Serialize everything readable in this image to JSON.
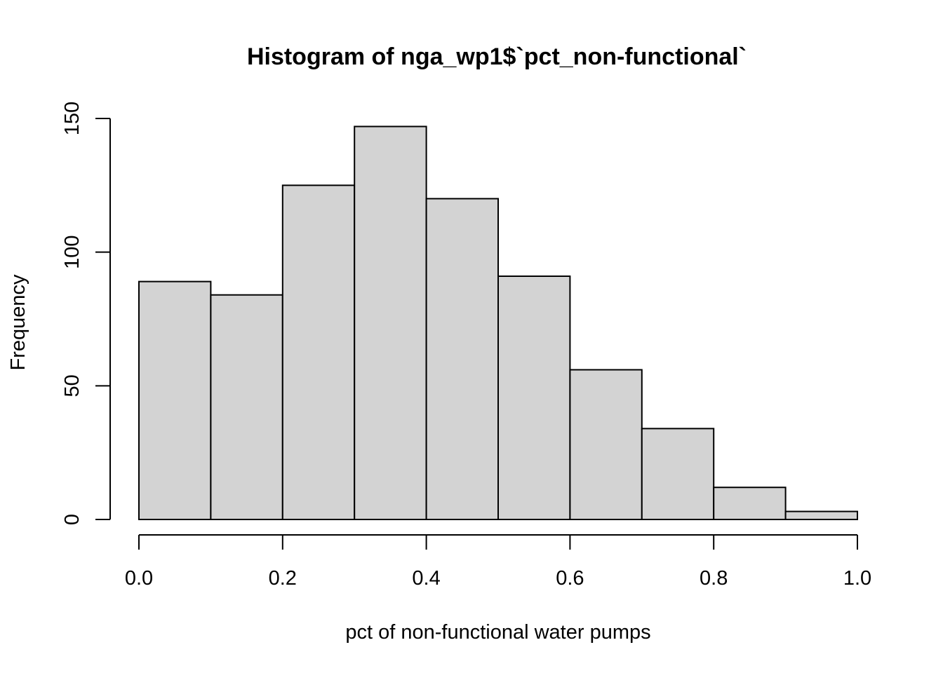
{
  "chart_data": {
    "type": "bar",
    "title": "Histogram of nga_wp1$`pct_non-functional`",
    "xlabel": "pct of non-functional water pumps",
    "ylabel": "Frequency",
    "bin_edges": [
      0.0,
      0.1,
      0.2,
      0.3,
      0.4,
      0.5,
      0.6,
      0.7,
      0.8,
      0.9,
      1.0
    ],
    "values": [
      89,
      84,
      125,
      147,
      120,
      91,
      56,
      34,
      12,
      3
    ],
    "xlim": [
      0,
      1
    ],
    "ylim": [
      0,
      150
    ],
    "x_ticks": [
      0.0,
      0.2,
      0.4,
      0.6,
      0.8,
      1.0
    ],
    "x_tick_labels": [
      "0.0",
      "0.2",
      "0.4",
      "0.6",
      "0.8",
      "1.0"
    ],
    "y_ticks": [
      0,
      50,
      100,
      150
    ],
    "y_tick_labels": [
      "0",
      "50",
      "100",
      "150"
    ],
    "grid": false,
    "bar_color": "#d3d3d3",
    "edge_color": "#000000"
  }
}
